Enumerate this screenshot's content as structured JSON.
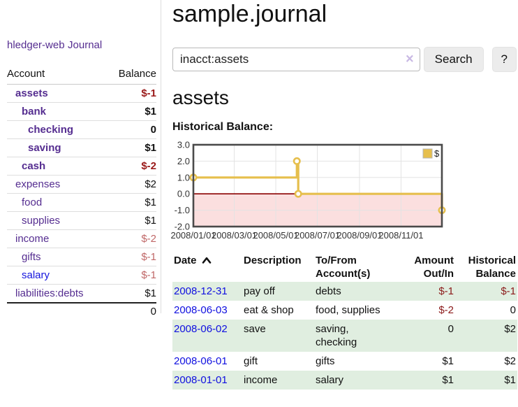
{
  "sidebar": {
    "app_title": "hledger-web",
    "journal_label": "Journal",
    "accounts_table": {
      "headers": {
        "account": "Account",
        "balance": "Balance"
      },
      "rows": [
        {
          "label": "assets",
          "balance": "$-1",
          "depth": 1,
          "bold": true,
          "label_color": "purple",
          "balance_color": "neg-strong"
        },
        {
          "label": "bank",
          "balance": "$1",
          "depth": 2,
          "bold": true,
          "label_color": "purple",
          "balance_color": "pos"
        },
        {
          "label": "checking",
          "balance": "0",
          "depth": 3,
          "bold": true,
          "label_color": "purple",
          "balance_color": "pos"
        },
        {
          "label": "saving",
          "balance": "$1",
          "depth": 3,
          "bold": true,
          "label_color": "purple",
          "balance_color": "pos"
        },
        {
          "label": "cash",
          "balance": "$-2",
          "depth": 2,
          "bold": true,
          "label_color": "purple",
          "balance_color": "neg-strong"
        },
        {
          "label": "expenses",
          "balance": "$2",
          "depth": 1,
          "bold": false,
          "label_color": "purple",
          "balance_color": "pos"
        },
        {
          "label": "food",
          "balance": "$1",
          "depth": 2,
          "bold": false,
          "label_color": "purple",
          "balance_color": "pos"
        },
        {
          "label": "supplies",
          "balance": "$1",
          "depth": 2,
          "bold": false,
          "label_color": "purple",
          "balance_color": "pos"
        },
        {
          "label": "income",
          "balance": "$-2",
          "depth": 1,
          "bold": false,
          "label_color": "purple",
          "balance_color": "neg-muted"
        },
        {
          "label": "gifts",
          "balance": "$-1",
          "depth": 2,
          "bold": false,
          "label_color": "purple",
          "balance_color": "neg-muted"
        },
        {
          "label": "salary",
          "balance": "$-1",
          "depth": 2,
          "bold": false,
          "label_color": "blue",
          "balance_color": "neg-muted"
        },
        {
          "label": "liabilities:debts",
          "balance": "$1",
          "depth": 1,
          "bold": false,
          "label_color": "purple",
          "balance_color": "pos"
        }
      ],
      "total": "0"
    }
  },
  "main": {
    "title": "sample.journal",
    "search": {
      "value": "inacct:assets",
      "clear_icon": "×",
      "search_button_label": "Search",
      "help_button_label": "?"
    },
    "account_heading": "assets",
    "chart_label": "Historical Balance:"
  },
  "chart_data": {
    "type": "line",
    "step": true,
    "title": "Historical Balance:",
    "grid": true,
    "legend_position": "top-right",
    "legend": [
      {
        "label": "$",
        "color": "#e6bf4d"
      }
    ],
    "x": [
      "2008-01-01",
      "2008-06-01",
      "2008-06-03",
      "2008-12-31"
    ],
    "series": [
      {
        "name": "$",
        "color": "#e6bf4d",
        "values": [
          1,
          2,
          0,
          -1
        ]
      }
    ],
    "xrange": [
      "2008-01-01",
      "2008-12-31"
    ],
    "ylim": [
      -2,
      3
    ],
    "ytick_labels": [
      "3.0",
      "2.0",
      "1.0",
      "0.0",
      "-1.0",
      "-2.0"
    ],
    "xtick_labels": [
      "2008/01/01",
      "2008/03/01",
      "2008/05/01",
      "2008/07/01",
      "2008/09/01",
      "2008/11/01"
    ],
    "negative_region_fill": "#fbdfdf",
    "zero_line_color": "#8b0000",
    "plot_border_color": "#4a4a4a",
    "grid_color": "#e3e3e3"
  },
  "register": {
    "headers": {
      "date": "Date",
      "description": "Description",
      "accounts": "To/From Account(s)",
      "amount": "Amount Out/In",
      "balance": "Historical Balance"
    },
    "rows": [
      {
        "date": "2008-12-31",
        "description": "pay off",
        "accounts": "debts",
        "amount": "$-1",
        "balance": "$-1",
        "amount_negative": true,
        "balance_negative": true
      },
      {
        "date": "2008-06-03",
        "description": "eat & shop",
        "accounts": "food, supplies",
        "amount": "$-2",
        "balance": "0",
        "amount_negative": true,
        "balance_negative": false
      },
      {
        "date": "2008-06-02",
        "description": "save",
        "accounts": "saving, checking",
        "amount": "0",
        "balance": "$2",
        "amount_negative": false,
        "balance_negative": false
      },
      {
        "date": "2008-06-01",
        "description": "gift",
        "accounts": "gifts",
        "amount": "$1",
        "balance": "$2",
        "amount_negative": false,
        "balance_negative": false
      },
      {
        "date": "2008-01-01",
        "description": "income",
        "accounts": "salary",
        "amount": "$1",
        "balance": "$1",
        "amount_negative": false,
        "balance_negative": false
      }
    ]
  }
}
